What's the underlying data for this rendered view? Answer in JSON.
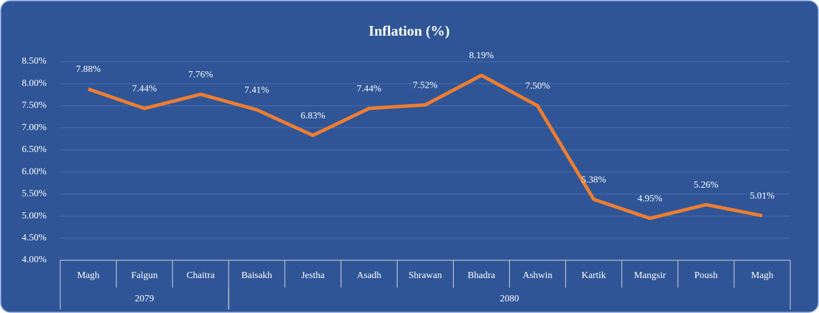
{
  "chart_data": {
    "type": "line",
    "title": "Inflation (%)",
    "categories": [
      "Magh",
      "Falgun",
      "Chaitra",
      "Baisakh",
      "Jestha",
      "Asadh",
      "Shrawan",
      "Bhadra",
      "Ashwin",
      "Kartik",
      "Mangsir",
      "Poush",
      "Magh"
    ],
    "groups": [
      {
        "label": "2079",
        "size": 3
      },
      {
        "label": "2080",
        "size": 10
      }
    ],
    "series": [
      {
        "name": "Inflation",
        "color": "#ED7D31",
        "values": [
          7.88,
          7.44,
          7.76,
          7.41,
          6.83,
          7.44,
          7.52,
          8.19,
          7.5,
          5.38,
          4.95,
          5.26,
          5.01
        ],
        "value_labels": [
          "7.88%",
          "7.44%",
          "7.76%",
          "7.41%",
          "6.83%",
          "7.44%",
          "7.52%",
          "8.19%",
          "7.50%",
          "5.38%",
          "4.95%",
          "5.26%",
          "5.01%"
        ]
      }
    ],
    "ylim": [
      4,
      8.5
    ],
    "yticks": [
      {
        "value": 4,
        "label": "4.00%"
      },
      {
        "value": 4.5,
        "label": "4.50%"
      },
      {
        "value": 5,
        "label": "5.00%"
      },
      {
        "value": 5.5,
        "label": "5.50%"
      },
      {
        "value": 6,
        "label": "6.00%"
      },
      {
        "value": 6.5,
        "label": "6.50%"
      },
      {
        "value": 7,
        "label": "7.00%"
      },
      {
        "value": 7.5,
        "label": "7.50%"
      },
      {
        "value": 8,
        "label": "8.00%"
      },
      {
        "value": 8.5,
        "label": "8.50%"
      }
    ],
    "grid": true
  }
}
